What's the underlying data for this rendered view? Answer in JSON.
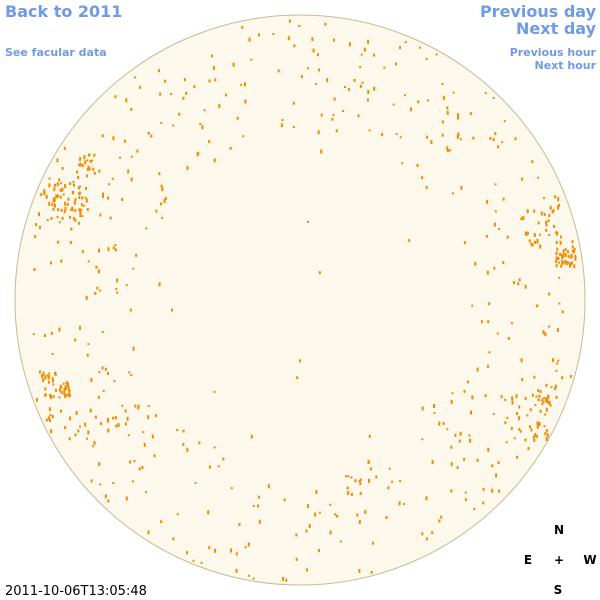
{
  "links": {
    "back": "Back to 2011",
    "facular": "See facular data",
    "previous_day": "Previous day",
    "next_day": "Next day",
    "previous_hour": "Previous hour",
    "next_hour": "Next hour"
  },
  "compass": {
    "north": "N",
    "east": "E",
    "center": "+",
    "west": "W",
    "south": "S"
  },
  "timestamp": "2011-10-06T13:05:48"
}
